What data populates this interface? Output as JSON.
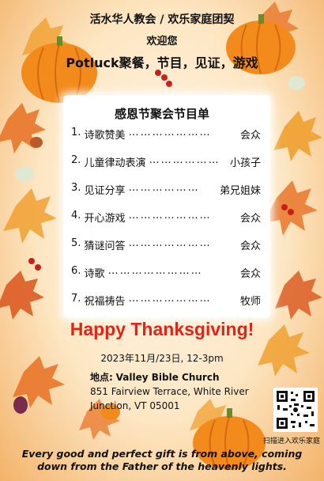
{
  "header": {
    "line1": "活水华人教会 / 欢乐家庭团契",
    "line2": "欢迎您",
    "line3": "Potluck聚餐，节目，见证，游戏"
  },
  "program": {
    "title": "感恩节聚会节目单",
    "items": [
      {
        "num": "1.",
        "label": "诗歌赞美",
        "dots": "…………………",
        "who": "会众"
      },
      {
        "num": "2.",
        "label": "儿童律动表演",
        "dots": "………………",
        "who": "小孩子"
      },
      {
        "num": "3.",
        "label": "见证分享",
        "dots": "………………",
        "who": "弟兄姐妹"
      },
      {
        "num": "4.",
        "label": "开心游戏",
        "dots": "…………………",
        "who": "会众"
      },
      {
        "num": "5.",
        "label": "猜谜问答",
        "dots": "…………………",
        "who": "会众"
      },
      {
        "num": "6.",
        "label": "诗歌",
        "dots": "……………………",
        "who": "会众"
      },
      {
        "num": "7.",
        "label": "祝福祷告",
        "dots": "…………………",
        "who": "牧师"
      }
    ]
  },
  "greeting": "Happy Thanksgiving!",
  "date": "2023年11月/23日, 12-3pm",
  "location": {
    "label": "地点:",
    "name": "Valley Bible Church",
    "line1": "851 Fairview Terrace, White River",
    "line2": "Junction, VT 05001"
  },
  "qr_caption": "扫描进入欢乐家庭",
  "verse": {
    "line1": "Every good and perfect gift is from above, coming",
    "line2": "down from the Father of the heavenly lights."
  },
  "colors": {
    "greeting": "#e2231a",
    "pumpkin": "#f28a1c",
    "leaf": "#e8762a",
    "panel": "#ffffff"
  }
}
